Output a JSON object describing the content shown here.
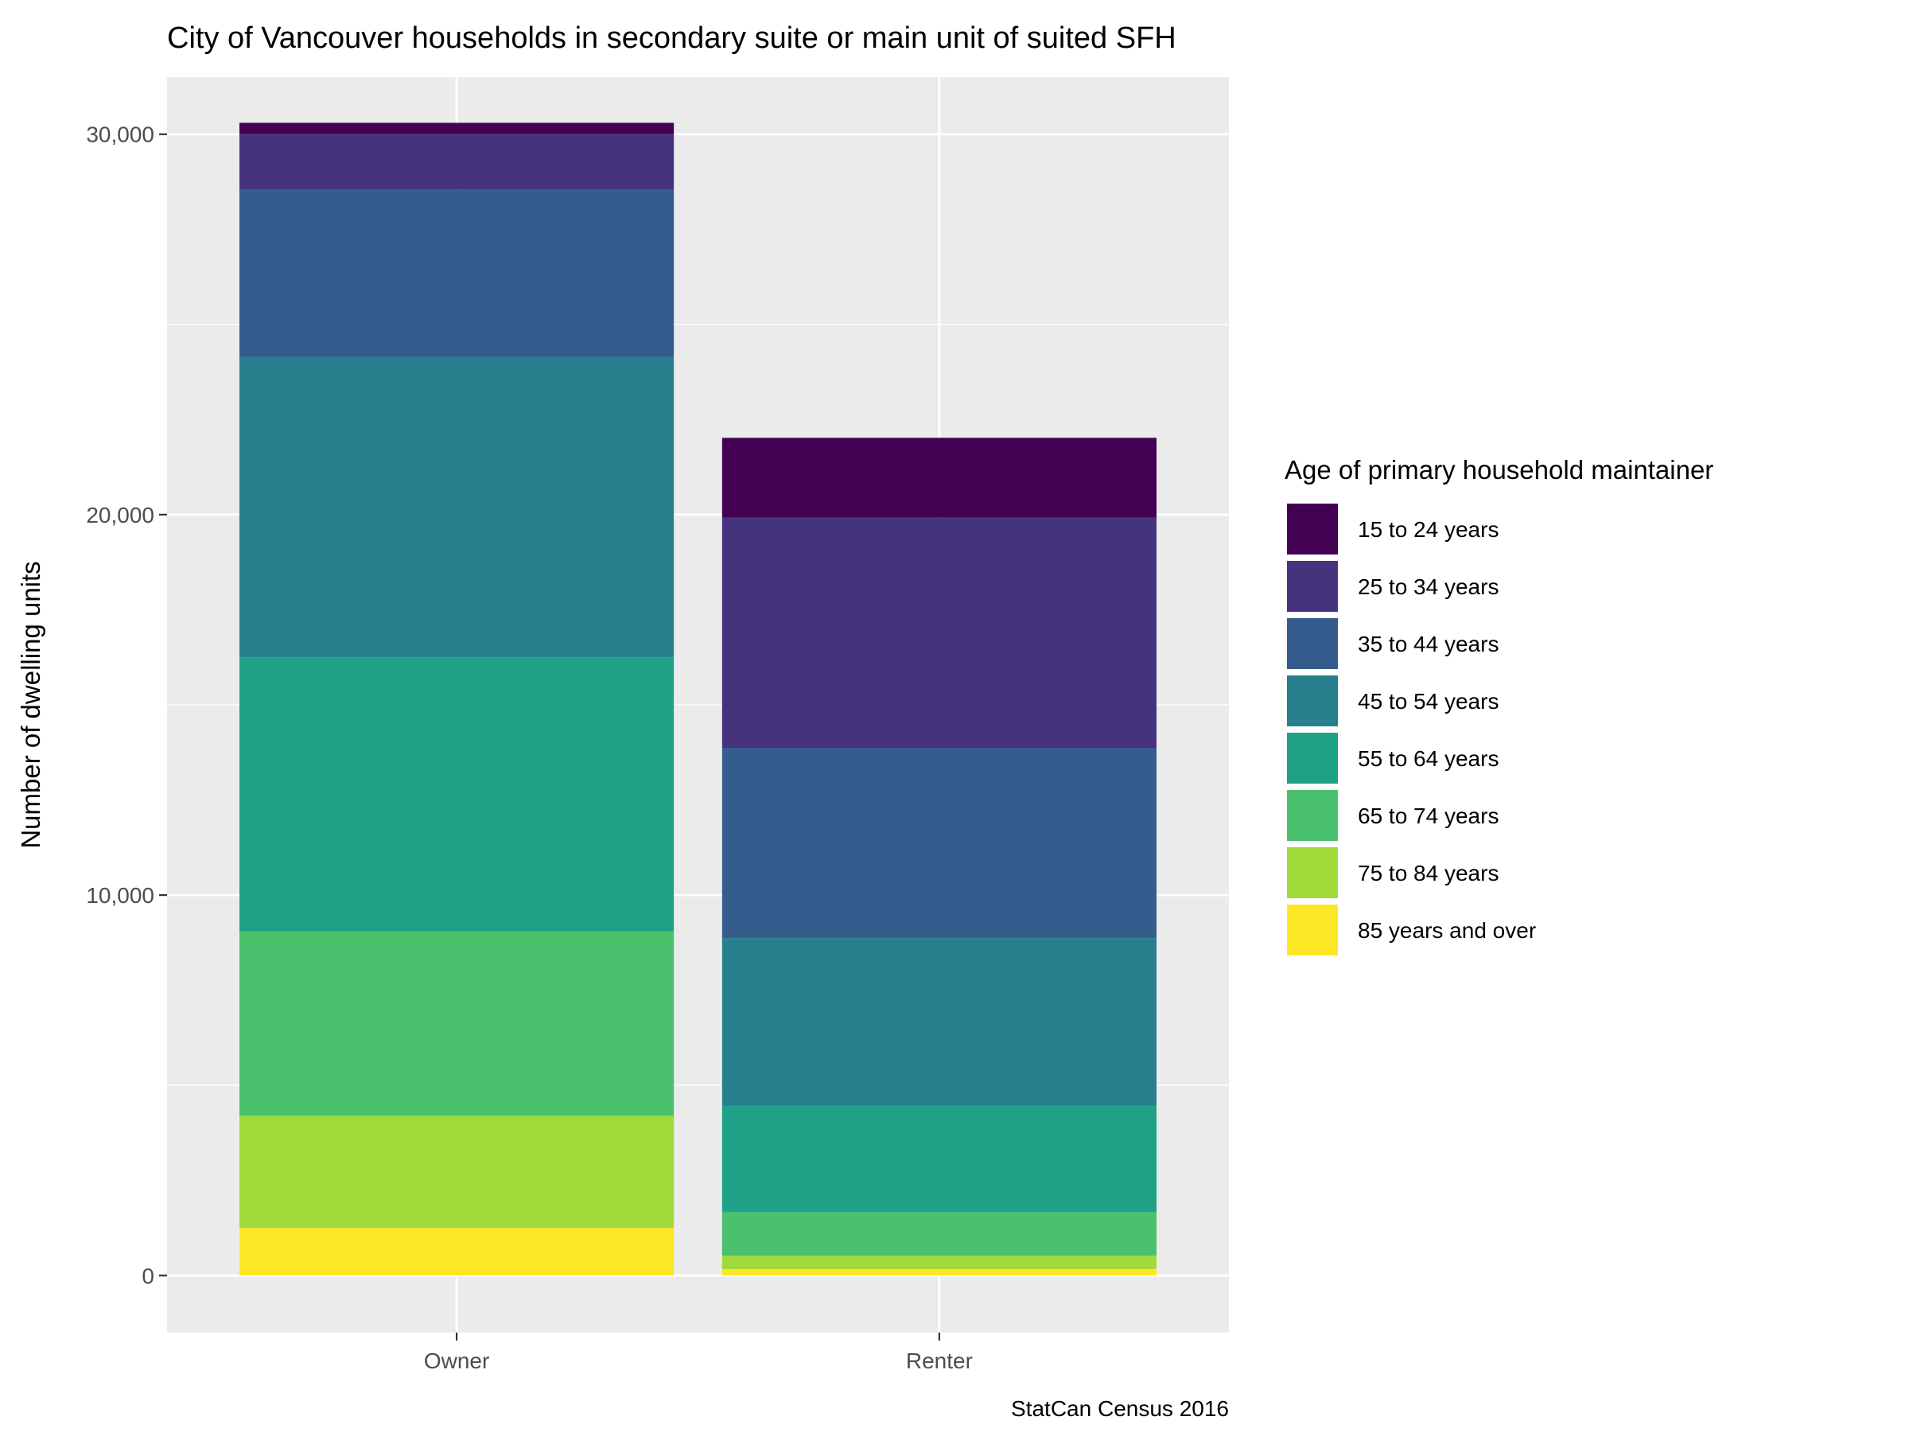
{
  "chart_data": {
    "type": "bar",
    "stacked": true,
    "title": "City of Vancouver households in secondary suite or main unit of suited SFH",
    "xlabel": "",
    "ylabel": "Number of dwelling units",
    "caption": "StatCan Census 2016",
    "categories": [
      "Owner",
      "Renter"
    ],
    "ylim": [
      -1500,
      31500
    ],
    "yticks": [
      0,
      10000,
      20000,
      30000
    ],
    "ytick_labels": [
      "0",
      "10,000",
      "20,000",
      "30,000"
    ],
    "grid": true,
    "legend": {
      "title": "Age of primary household maintainer",
      "position": "right"
    },
    "series": [
      {
        "name": "15 to 24 years",
        "color": "#440154",
        "values": [
          300,
          2100
        ]
      },
      {
        "name": "25 to 34 years",
        "color": "#46337E",
        "values": [
          1450,
          6050
        ]
      },
      {
        "name": "35 to 44 years",
        "color": "#365C8D",
        "values": [
          4400,
          5000
        ]
      },
      {
        "name": "45 to 54 years",
        "color": "#277F8E",
        "values": [
          7900,
          4400
        ]
      },
      {
        "name": "55 to 64 years",
        "color": "#1FA187",
        "values": [
          7200,
          2800
        ]
      },
      {
        "name": "65 to 74 years",
        "color": "#4AC16D",
        "values": [
          4850,
          1150
        ]
      },
      {
        "name": "75 to 84 years",
        "color": "#9FDA3A",
        "values": [
          2950,
          350
        ]
      },
      {
        "name": "85 years and over",
        "color": "#FDE725",
        "values": [
          1250,
          170
        ]
      }
    ]
  }
}
